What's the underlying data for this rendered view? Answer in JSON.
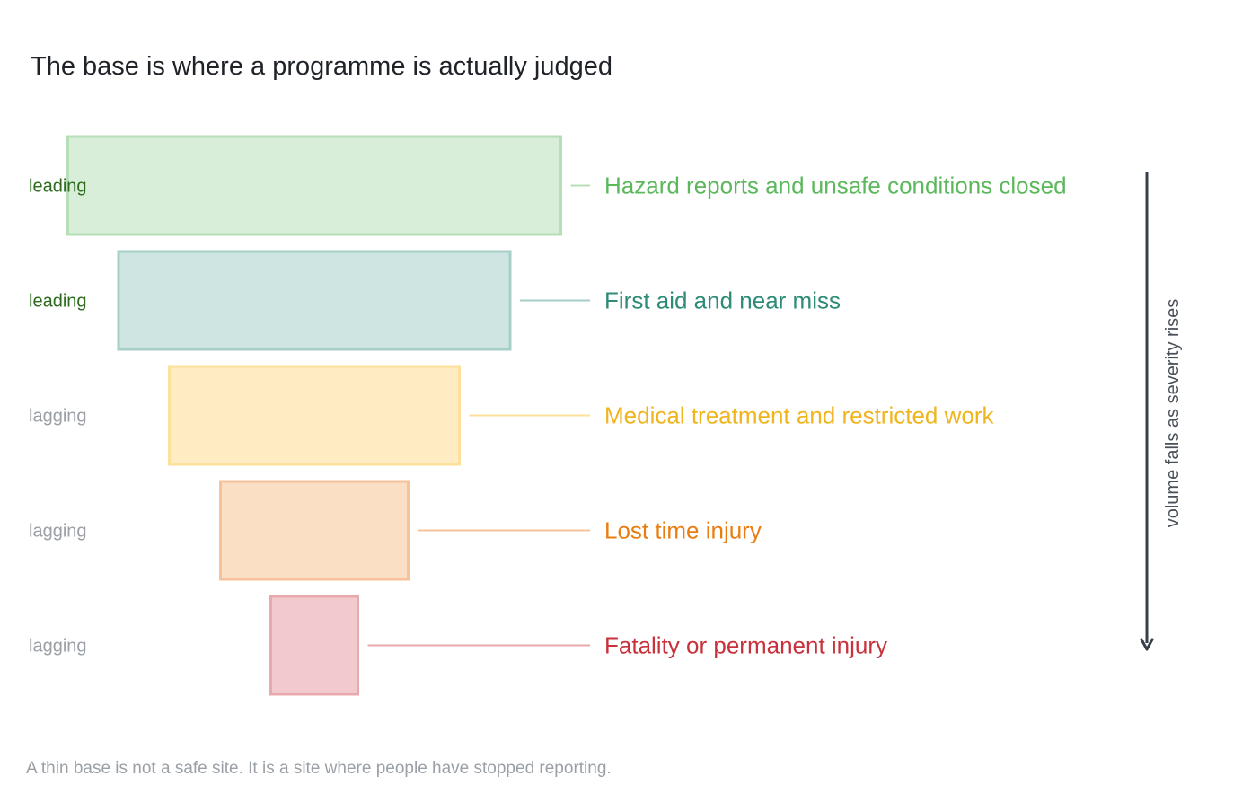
{
  "title": "The base is where a programme is actually judged",
  "footnote": "A thin base is not a safe site. It is a site where people have stopped reporting.",
  "axis": {
    "label": "volume falls as severity rises",
    "color": "#36404a"
  },
  "tiers": [
    {
      "kind": "leading",
      "label": "Hazard reports and unsafe conditions closed",
      "kind_color": "#2e6b1f",
      "text_color": "#5cb85c",
      "fill": "#d8eed8",
      "stroke": "#b7dfb7"
    },
    {
      "kind": "leading",
      "label": "First aid and near miss",
      "kind_color": "#2e6b1f",
      "text_color": "#2e8b78",
      "fill": "#cfe5e1",
      "stroke": "#a6cfc7"
    },
    {
      "kind": "lagging",
      "label": "Medical treatment and restricted work",
      "kind_color": "#9aa0a6",
      "text_color": "#f0b41c",
      "fill": "#ffecc2",
      "stroke": "#fde09a"
    },
    {
      "kind": "lagging",
      "label": "Lost time injury",
      "kind_color": "#9aa0a6",
      "text_color": "#ea7d12",
      "fill": "#fbdfc4",
      "stroke": "#f7c29a"
    },
    {
      "kind": "lagging",
      "label": "Fatality or permanent injury",
      "kind_color": "#9aa0a6",
      "text_color": "#c8323c",
      "fill": "#f2cacd",
      "stroke": "#e8a9ae"
    }
  ]
}
